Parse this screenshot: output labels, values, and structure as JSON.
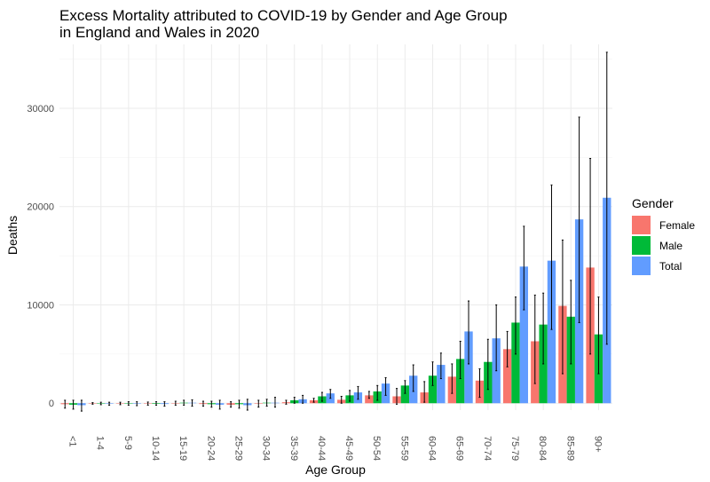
{
  "chart_data": {
    "type": "bar",
    "title": "Excess Mortality attributed to COVID-19 by Gender and Age Group",
    "subtitle": "in England and Wales in 2020",
    "xlabel": "Age Group",
    "ylabel": "Deaths",
    "ylim": [
      -700,
      36500
    ],
    "yticks": [
      0,
      10000,
      20000,
      30000
    ],
    "grid": true,
    "legend": {
      "title": "Gender",
      "position": "right"
    },
    "categories": [
      "<1",
      "1-4",
      "5-9",
      "10-14",
      "15-19",
      "20-24",
      "25-29",
      "30-34",
      "35-39",
      "40-44",
      "45-49",
      "50-54",
      "55-59",
      "60-64",
      "65-69",
      "70-74",
      "75-79",
      "80-84",
      "85-89",
      "90+"
    ],
    "series": [
      {
        "name": "Female",
        "color": "#F8766D",
        "values": [
          -100,
          -20,
          -30,
          -40,
          -20,
          -80,
          -150,
          -50,
          100,
          300,
          350,
          800,
          700,
          1100,
          2700,
          2300,
          5500,
          6300,
          9900,
          13800
        ],
        "lower": [
          -500,
          -100,
          -150,
          -200,
          -200,
          -300,
          -400,
          -400,
          -100,
          100,
          0,
          500,
          -100,
          100,
          1000,
          600,
          3700,
          2000,
          3000,
          5000
        ],
        "upper": [
          300,
          60,
          100,
          120,
          200,
          200,
          150,
          300,
          300,
          500,
          700,
          1200,
          1500,
          2200,
          4000,
          3500,
          7300,
          11000,
          16600,
          24900
        ]
      },
      {
        "name": "Male",
        "color": "#00BA38",
        "values": [
          -150,
          -30,
          -40,
          -60,
          50,
          -100,
          -100,
          50,
          300,
          700,
          800,
          1200,
          1800,
          2800,
          4500,
          4200,
          8200,
          8000,
          8800,
          7000
        ],
        "lower": [
          -600,
          -150,
          -200,
          -200,
          -200,
          -400,
          -500,
          -300,
          0,
          200,
          200,
          300,
          1000,
          1800,
          2500,
          1400,
          5000,
          4000,
          4000,
          3000
        ],
        "upper": [
          300,
          100,
          150,
          150,
          300,
          200,
          300,
          400,
          600,
          1100,
          1300,
          1800,
          2300,
          4200,
          6300,
          6500,
          10800,
          11200,
          12500,
          10800
        ]
      },
      {
        "name": "Total",
        "color": "#619CFF",
        "values": [
          -200,
          -50,
          -50,
          -80,
          50,
          -150,
          -200,
          50,
          400,
          1000,
          1100,
          2000,
          2800,
          3900,
          7300,
          6600,
          13900,
          14500,
          18700,
          20900
        ],
        "lower": [
          -800,
          -200,
          -250,
          -300,
          -300,
          -600,
          -700,
          -400,
          0,
          500,
          400,
          800,
          1200,
          2500,
          4000,
          3300,
          9500,
          7500,
          8200,
          6000
        ],
        "upper": [
          300,
          100,
          150,
          150,
          350,
          300,
          400,
          600,
          800,
          1400,
          1700,
          2600,
          3900,
          5100,
          10400,
          10000,
          18000,
          22200,
          29100,
          35700
        ]
      }
    ]
  }
}
